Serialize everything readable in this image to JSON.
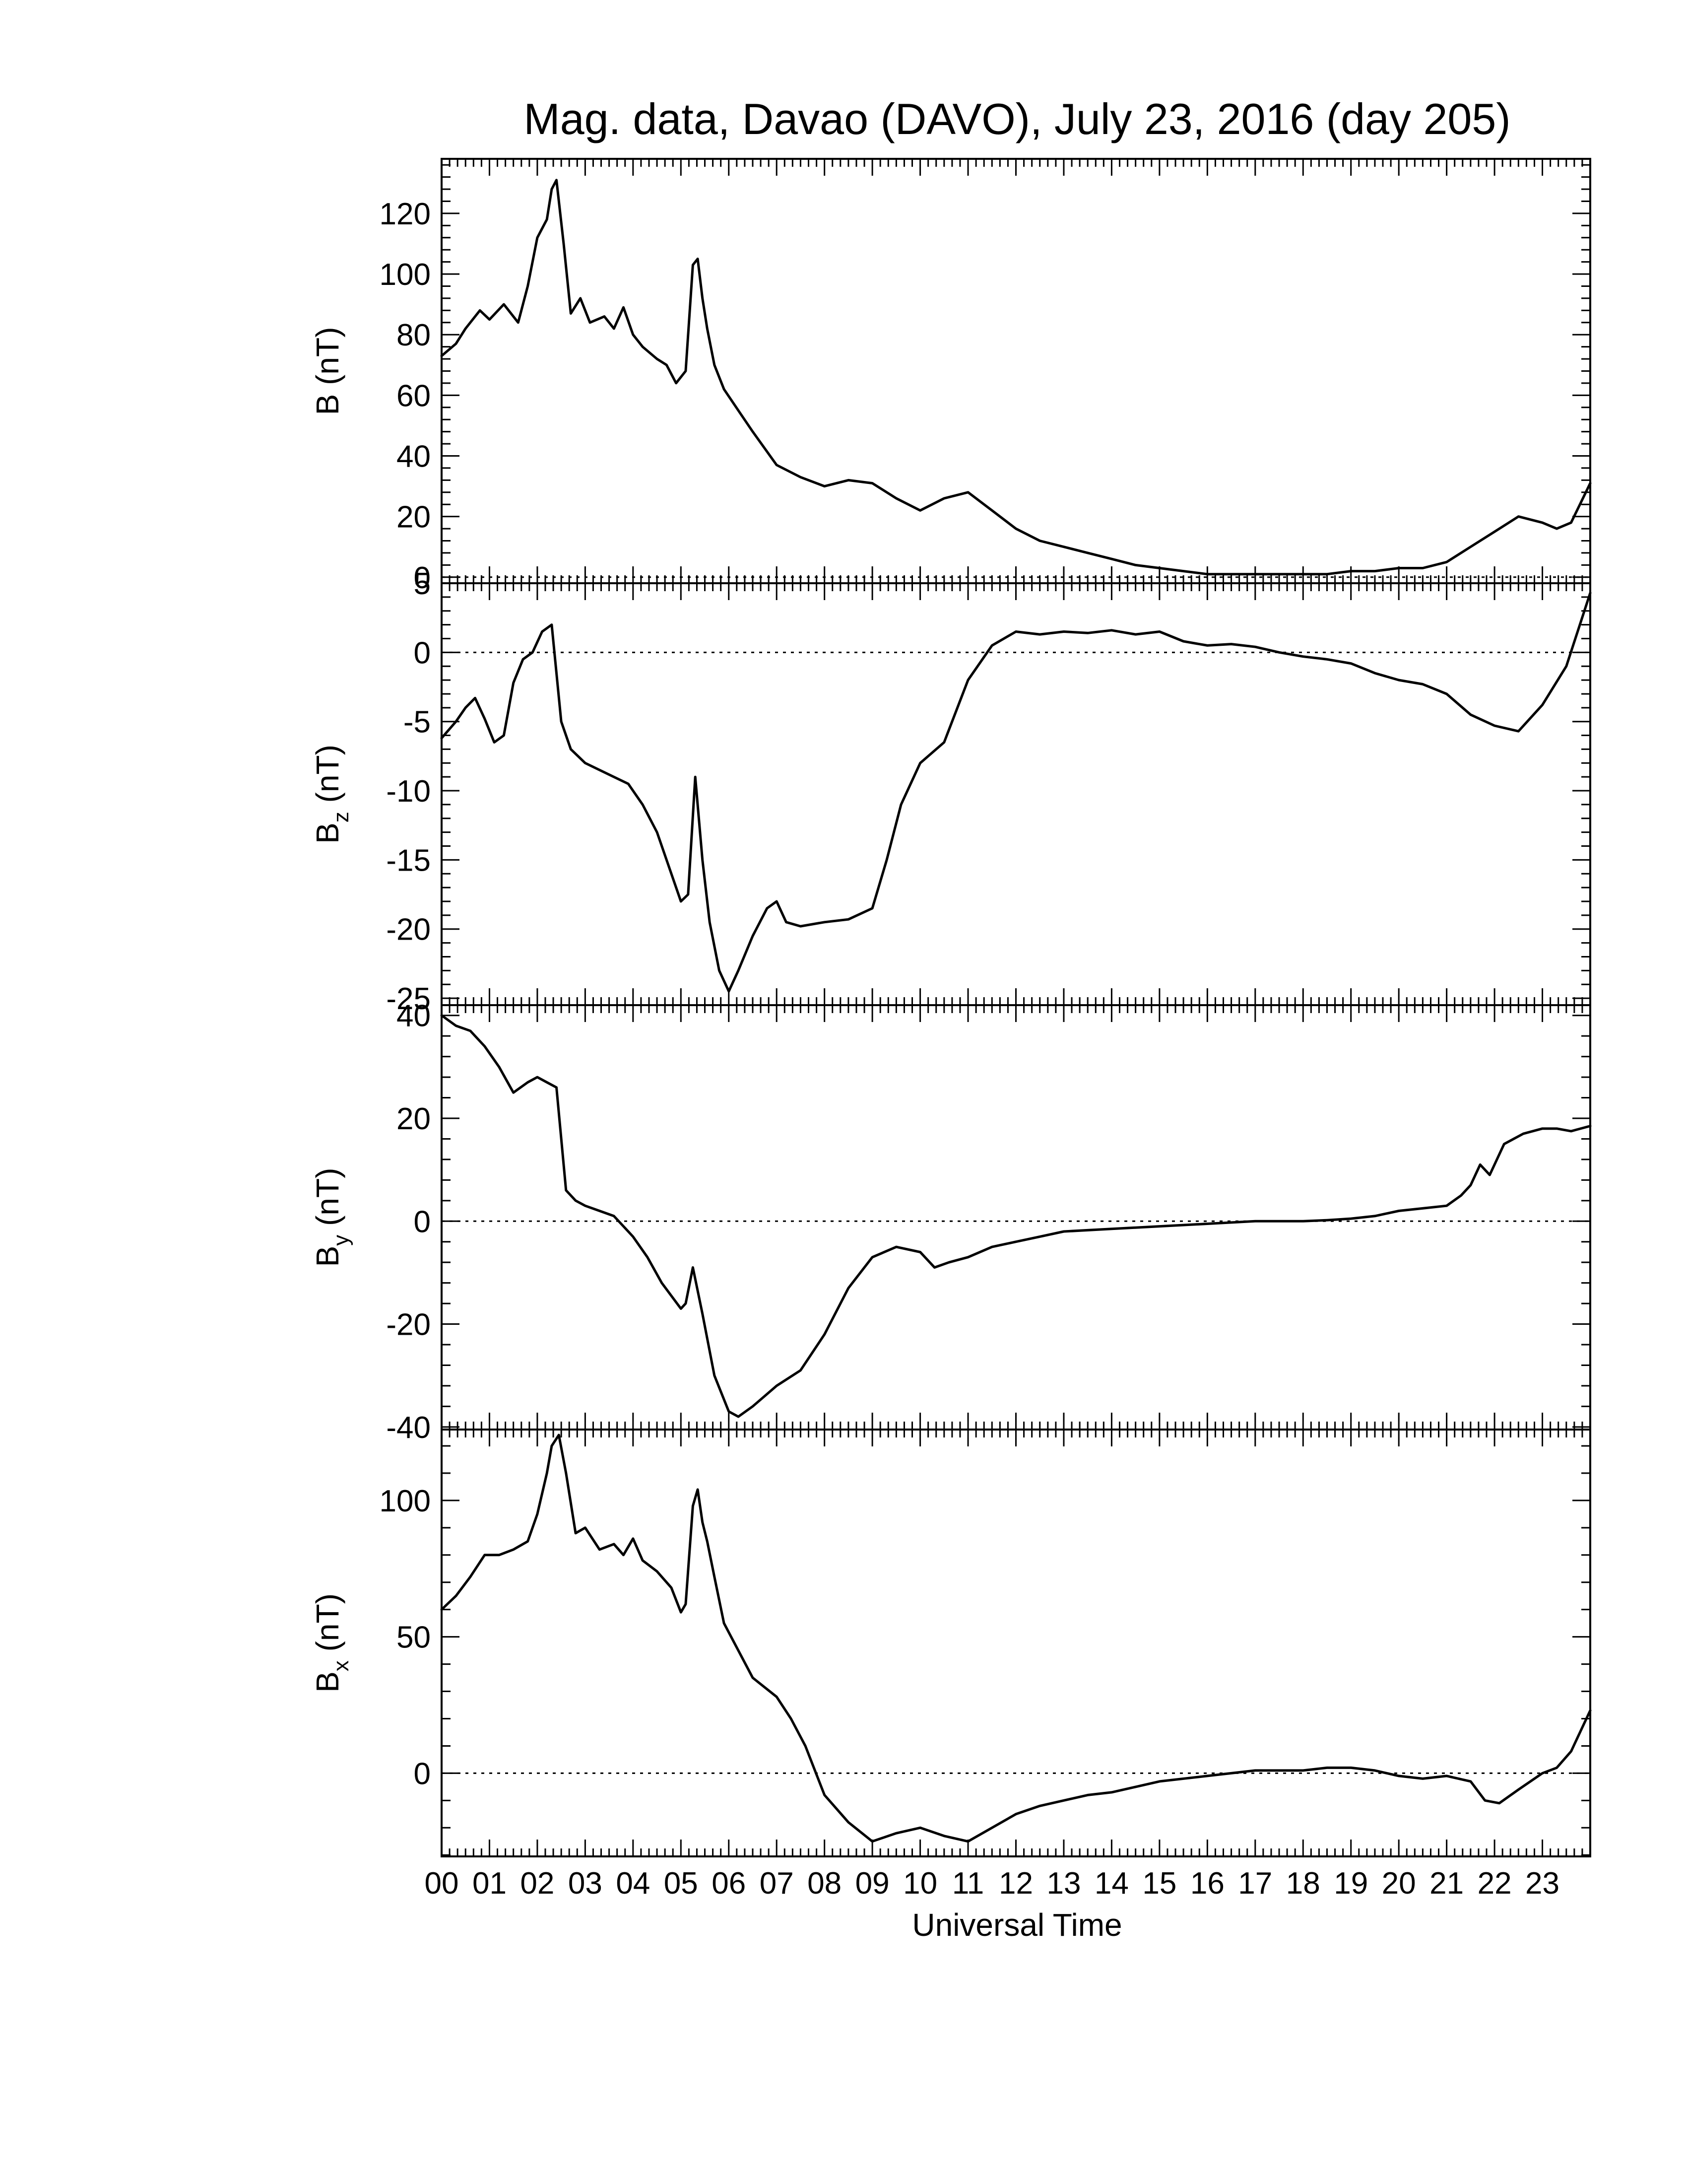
{
  "chart_data": {
    "type": "line",
    "title": "Mag. data, Davao (DAVO), July 23, 2016 (day 205)",
    "xlabel": "Universal Time",
    "x_unit": "hours UT",
    "xlim": [
      0,
      24
    ],
    "x_ticks": [
      "00",
      "01",
      "02",
      "03",
      "04",
      "05",
      "06",
      "07",
      "08",
      "09",
      "10",
      "11",
      "12",
      "13",
      "14",
      "15",
      "16",
      "17",
      "18",
      "19",
      "20",
      "21",
      "22",
      "23"
    ],
    "grid": false,
    "zero_line": "dotted",
    "panels": [
      {
        "name": "B",
        "ylabel": "B (nT)",
        "ylabel_base": "B",
        "ylabel_sub": "",
        "ylabel_unit": " (nT)",
        "ylim": [
          -2,
          138
        ],
        "yticks": [
          0,
          20,
          40,
          60,
          80,
          100,
          120
        ],
        "x": [
          0,
          0.3,
          0.5,
          0.8,
          1.0,
          1.3,
          1.6,
          1.8,
          2.0,
          2.2,
          2.3,
          2.4,
          2.55,
          2.7,
          2.9,
          3.1,
          3.4,
          3.6,
          3.8,
          4.0,
          4.2,
          4.5,
          4.7,
          4.9,
          5.1,
          5.25,
          5.35,
          5.45,
          5.55,
          5.7,
          5.9,
          6.2,
          6.5,
          7.0,
          7.5,
          8.0,
          8.5,
          9.0,
          9.5,
          10.0,
          10.5,
          11.0,
          11.5,
          12.0,
          12.5,
          13.0,
          13.5,
          14.0,
          14.5,
          15.0,
          15.5,
          16.0,
          16.5,
          17.0,
          17.5,
          18.0,
          18.5,
          19.0,
          19.5,
          20.0,
          20.5,
          21.0,
          21.5,
          22.0,
          22.5,
          23.0,
          23.3,
          23.6,
          24.0
        ],
        "y": [
          73,
          77,
          82,
          88,
          85,
          90,
          84,
          96,
          112,
          118,
          128,
          131,
          110,
          87,
          92,
          84,
          86,
          82,
          89,
          80,
          76,
          72,
          70,
          64,
          68,
          103,
          105,
          92,
          82,
          70,
          62,
          55,
          48,
          37,
          33,
          30,
          32,
          31,
          26,
          22,
          26,
          28,
          22,
          16,
          12,
          10,
          8,
          6,
          4,
          3,
          2,
          1,
          1,
          1,
          1,
          1,
          1,
          2,
          2,
          3,
          3,
          5,
          10,
          15,
          20,
          18,
          16,
          18,
          31
        ]
      },
      {
        "name": "Bz",
        "ylabel": "Bz (nT)",
        "ylabel_base": "B",
        "ylabel_sub": "z",
        "ylabel_unit": " (nT)",
        "ylim": [
          -25.5,
          5
        ],
        "yticks": [
          5,
          0,
          -5,
          -10,
          -15,
          -20,
          -25
        ],
        "x": [
          0,
          0.3,
          0.5,
          0.7,
          0.9,
          1.1,
          1.3,
          1.5,
          1.7,
          1.9,
          2.1,
          2.3,
          2.5,
          2.7,
          3.0,
          3.3,
          3.6,
          3.9,
          4.2,
          4.5,
          4.8,
          5.0,
          5.15,
          5.3,
          5.45,
          5.6,
          5.8,
          6.0,
          6.2,
          6.5,
          6.8,
          7.0,
          7.2,
          7.5,
          8.0,
          8.5,
          9.0,
          9.3,
          9.6,
          10.0,
          10.5,
          11.0,
          11.5,
          12.0,
          12.5,
          13.0,
          13.5,
          14.0,
          14.5,
          15.0,
          15.5,
          16.0,
          16.5,
          17.0,
          17.5,
          18.0,
          18.5,
          19.0,
          19.5,
          20.0,
          20.5,
          21.0,
          21.5,
          22.0,
          22.5,
          23.0,
          23.5,
          24.0
        ],
        "y": [
          -6.2,
          -5,
          -4,
          -3.3,
          -4.8,
          -6.5,
          -6,
          -2.2,
          -0.5,
          0,
          1.5,
          2,
          -5,
          -7,
          -8,
          -8.5,
          -9,
          -9.5,
          -11,
          -13,
          -16,
          -18,
          -17.5,
          -9,
          -15,
          -19.5,
          -23,
          -24.5,
          -23,
          -20.5,
          -18.5,
          -18,
          -19.5,
          -19.8,
          -19.5,
          -19.3,
          -18.5,
          -15,
          -11,
          -8,
          -6.5,
          -2,
          0.5,
          1.5,
          1.3,
          1.5,
          1.4,
          1.6,
          1.3,
          1.5,
          0.8,
          0.5,
          0.6,
          0.4,
          0,
          -0.3,
          -0.5,
          -0.8,
          -1.5,
          -2,
          -2.3,
          -3,
          -4.5,
          -5.3,
          -5.7,
          -3.8,
          -1,
          4.3
        ]
      },
      {
        "name": "By",
        "ylabel": "By (nT)",
        "ylabel_base": "B",
        "ylabel_sub": "y",
        "ylabel_unit": " (nT)",
        "ylim": [
          -40.5,
          42
        ],
        "yticks": [
          40,
          20,
          0,
          -20,
          -40
        ],
        "x": [
          0,
          0.3,
          0.6,
          0.9,
          1.2,
          1.5,
          1.8,
          2.0,
          2.2,
          2.4,
          2.6,
          2.8,
          3.0,
          3.3,
          3.6,
          4.0,
          4.3,
          4.6,
          5.0,
          5.1,
          5.25,
          5.45,
          5.7,
          6.0,
          6.2,
          6.5,
          7.0,
          7.5,
          8.0,
          8.5,
          9.0,
          9.5,
          10.0,
          10.3,
          10.6,
          11.0,
          11.5,
          12.0,
          12.5,
          13.0,
          14.0,
          15.0,
          16.0,
          17.0,
          18.0,
          18.5,
          19.0,
          19.5,
          20.0,
          20.5,
          21.0,
          21.3,
          21.5,
          21.7,
          21.9,
          22.2,
          22.6,
          23.0,
          23.3,
          23.6,
          24.0
        ],
        "y": [
          40,
          38,
          37,
          34,
          30,
          25,
          27,
          28,
          27,
          26,
          6,
          4,
          3,
          2,
          1,
          -3,
          -7,
          -12,
          -17,
          -16,
          -9,
          -18,
          -30,
          -37,
          -38,
          -36,
          -32,
          -29,
          -22,
          -13,
          -7,
          -5,
          -6,
          -9,
          -8,
          -7,
          -5,
          -4,
          -3,
          -2,
          -1.5,
          -1,
          -0.5,
          0,
          0,
          0.2,
          0.5,
          1,
          2,
          2.5,
          3,
          5,
          7,
          11,
          9,
          15,
          17,
          18,
          18,
          17.5,
          18.5
        ]
      },
      {
        "name": "Bx",
        "ylabel": "Bx (nT)",
        "ylabel_base": "B",
        "ylabel_sub": "x",
        "ylabel_unit": " (nT)",
        "ylim": [
          -30.5,
          126
        ],
        "yticks": [
          100,
          50,
          0
        ],
        "x": [
          0,
          0.3,
          0.6,
          0.9,
          1.2,
          1.5,
          1.8,
          2.0,
          2.2,
          2.3,
          2.45,
          2.6,
          2.8,
          3.0,
          3.3,
          3.6,
          3.8,
          4.0,
          4.2,
          4.5,
          4.8,
          5.0,
          5.1,
          5.25,
          5.35,
          5.45,
          5.55,
          5.7,
          5.9,
          6.2,
          6.5,
          7.0,
          7.3,
          7.6,
          8.0,
          8.5,
          9.0,
          9.5,
          10.0,
          10.5,
          11.0,
          11.5,
          12.0,
          12.5,
          13.0,
          13.5,
          14.0,
          15.0,
          16.0,
          17.0,
          18.0,
          18.5,
          19.0,
          19.5,
          20.0,
          20.5,
          21.0,
          21.5,
          21.8,
          22.1,
          22.5,
          23.0,
          23.3,
          23.6,
          24.0
        ],
        "y": [
          60,
          65,
          72,
          80,
          80,
          82,
          85,
          95,
          110,
          120,
          124,
          110,
          88,
          90,
          82,
          84,
          80,
          86,
          78,
          74,
          68,
          59,
          62,
          98,
          104,
          92,
          85,
          72,
          55,
          45,
          35,
          28,
          20,
          10,
          -8,
          -18,
          -25,
          -22,
          -20,
          -23,
          -25,
          -20,
          -15,
          -12,
          -10,
          -8,
          -7,
          -3,
          -1,
          1,
          1,
          2,
          2,
          1,
          -1,
          -2,
          -1,
          -3,
          -10,
          -11,
          -6,
          0,
          2,
          8,
          23
        ]
      }
    ]
  }
}
